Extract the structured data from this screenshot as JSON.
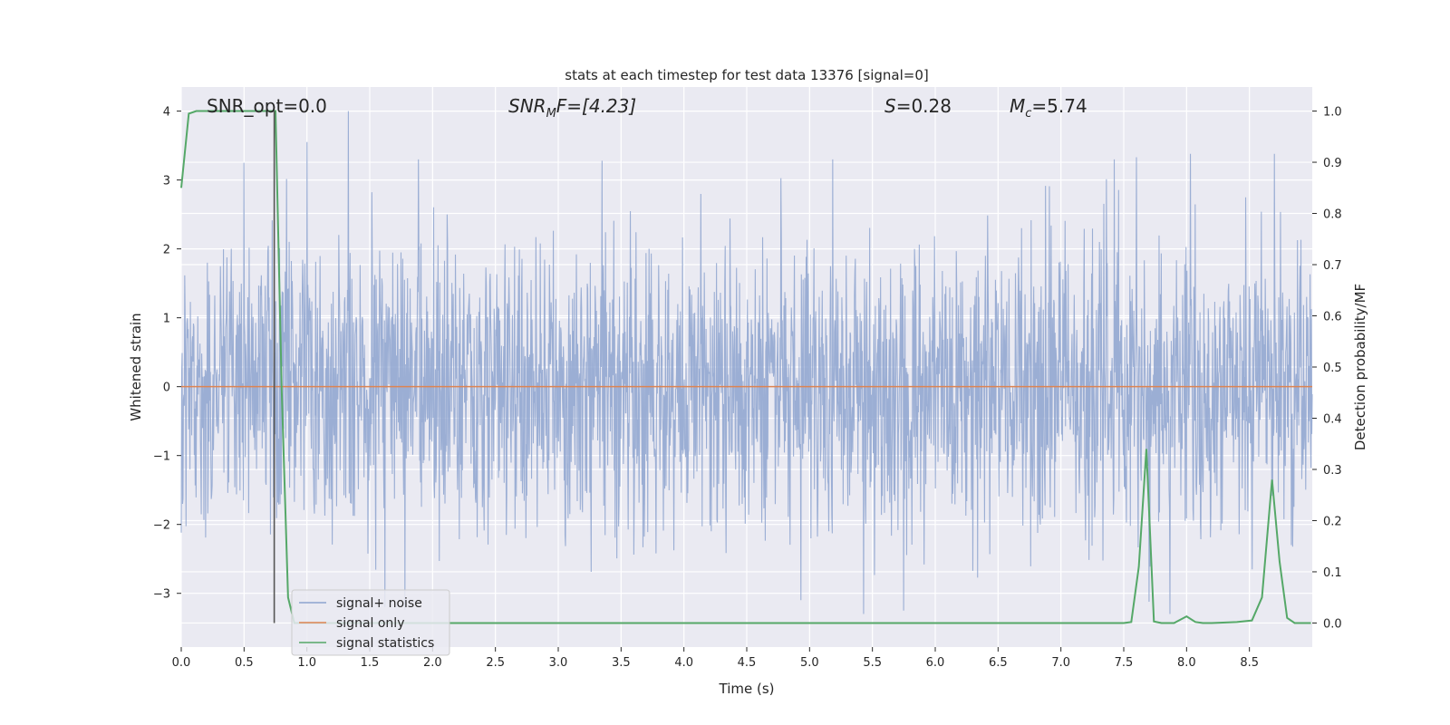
{
  "chart_data": {
    "type": "line",
    "title": "stats at each timestep for test data 13376 [signal=0]",
    "xlabel": "Time (s)",
    "ylabel_left": "Whitened strain",
    "ylabel_right": "Detection probability/MF",
    "xlim": [
      0.0,
      9.0
    ],
    "ylim_left": [
      -3.78,
      4.35
    ],
    "ylim_right": [
      -0.047,
      1.047
    ],
    "xticks": [
      "0.0",
      "0.5",
      "1.0",
      "1.5",
      "2.0",
      "2.5",
      "3.0",
      "3.5",
      "4.0",
      "4.5",
      "5.0",
      "5.5",
      "6.0",
      "6.5",
      "7.0",
      "7.5",
      "8.0",
      "8.5"
    ],
    "yticks_left": [
      "4",
      "3",
      "2",
      "1",
      "0",
      "−1",
      "−2",
      "−3"
    ],
    "yticks_right": [
      "1.0",
      "0.9",
      "0.8",
      "0.7",
      "0.6",
      "0.5",
      "0.4",
      "0.3",
      "0.2",
      "0.1",
      "0.0"
    ],
    "grid": true,
    "legend_position": "lower-left",
    "annotations": {
      "snr_opt": "SNR_opt=0.0",
      "snr_mf_main": "SNR",
      "snr_mf_sub": "M",
      "snr_mf_rest": "F=[4.23]",
      "s_var": "S",
      "s_rest": "=0.28",
      "mc_var": "M",
      "mc_sub": "c",
      "mc_rest": "=5.74"
    },
    "series": [
      {
        "name": "signal+ noise",
        "color": "#8da3cf",
        "description": "whitened strain noise, roughly zero-mean with amplitude about ±2.5, max 4.0 near t=1.33s, min about -3.3"
      },
      {
        "name": "signal only",
        "color": "#dd8452",
        "x": [
          0.0,
          9.0
        ],
        "y": [
          0.0,
          0.0
        ]
      },
      {
        "name": "signal statistics",
        "color": "#55a868",
        "axis": "right",
        "x": [
          0.0,
          0.06,
          0.12,
          0.2,
          0.4,
          0.6,
          0.72,
          0.75,
          0.8,
          0.85,
          0.9,
          1.5,
          3.0,
          5.0,
          7.0,
          7.5,
          7.56,
          7.62,
          7.68,
          7.74,
          7.8,
          7.9,
          8.0,
          8.07,
          8.13,
          8.2,
          8.4,
          8.52,
          8.6,
          8.68,
          8.74,
          8.8,
          8.86,
          8.92,
          8.99
        ],
        "y": [
          0.85,
          0.995,
          1.0,
          1.0,
          1.0,
          1.0,
          1.0,
          1.0,
          0.45,
          0.05,
          0.0,
          0.0,
          0.0,
          0.0,
          0.0,
          0.0,
          0.002,
          0.11,
          0.34,
          0.003,
          0.0,
          0.0,
          0.013,
          0.002,
          0.0,
          0.0,
          0.002,
          0.005,
          0.05,
          0.28,
          0.12,
          0.01,
          0.0,
          0.0,
          0.0
        ]
      }
    ],
    "vline": {
      "x": 0.74,
      "y_range_right": [
        0.0,
        1.0
      ],
      "color": "#555555"
    }
  }
}
